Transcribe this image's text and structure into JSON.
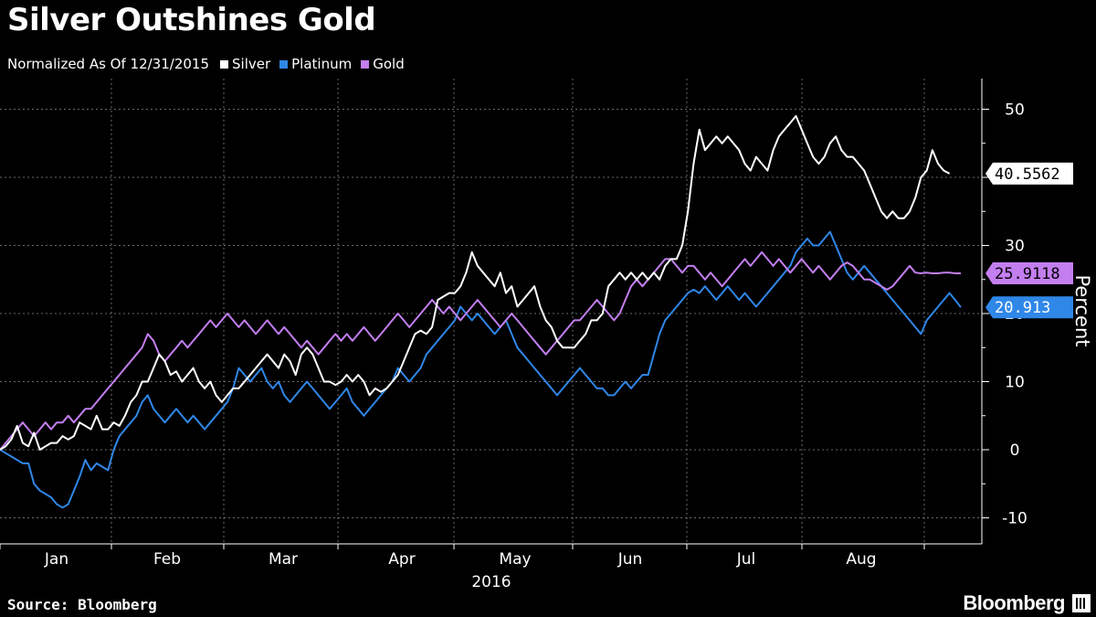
{
  "title": "Silver Outshines Gold",
  "subtitle": "Normalized As Of 12/31/2015",
  "source": "Source: Bloomberg",
  "brand": "Bloomberg",
  "chart_data": {
    "type": "line",
    "title": "Silver Outshines Gold",
    "subtitle": "Normalized As Of 12/31/2015",
    "ylabel": "Percent",
    "xlabel": "2016",
    "ylim": [
      -14,
      55
    ],
    "yticks": [
      -10,
      0,
      10,
      20,
      30,
      40,
      50
    ],
    "xticks": [
      "Jan",
      "Feb",
      "Mar",
      "Apr",
      "May",
      "Jun",
      "Jul",
      "Aug"
    ],
    "year_label": "2016",
    "grid": true,
    "legend_position": "top-left",
    "n_points": 170,
    "series": [
      {
        "name": "Silver",
        "color": "#ffffff",
        "last_label": "40.5562",
        "values": [
          0,
          0.5,
          1.5,
          3.5,
          1,
          0.5,
          2.5,
          0,
          0.5,
          1,
          1,
          2,
          1.5,
          2,
          4,
          3.5,
          3,
          5,
          3,
          3,
          4,
          3.5,
          5,
          7,
          8,
          10,
          10,
          12,
          14,
          13,
          11,
          11.5,
          10,
          11,
          12,
          10,
          9,
          10,
          8,
          7,
          8,
          9,
          9,
          10,
          11,
          12,
          13,
          14,
          13,
          12,
          14,
          13,
          11,
          14,
          15,
          14,
          12,
          10,
          10,
          9.5,
          10,
          11,
          10,
          11,
          10,
          8,
          9,
          8.5,
          9,
          10,
          11,
          13,
          15,
          17,
          17.5,
          17,
          18,
          22,
          22.5,
          23,
          23,
          24,
          26,
          29,
          27,
          26,
          25,
          24,
          26,
          23,
          24,
          21,
          22,
          23,
          24,
          21,
          19,
          18,
          16,
          15,
          15,
          15,
          16,
          17,
          19,
          19,
          20,
          24,
          25,
          26,
          25,
          26,
          25,
          26,
          25,
          26,
          25,
          27,
          28,
          28,
          30,
          35,
          42,
          47,
          44,
          45,
          46,
          45,
          46,
          45,
          44,
          42,
          41,
          43,
          42,
          41,
          44,
          46,
          47,
          48,
          49,
          47,
          45,
          43,
          42,
          43,
          45,
          46,
          44,
          43,
          43,
          42,
          41,
          39,
          37,
          35,
          34,
          35,
          34,
          34,
          35,
          37,
          40,
          41,
          44,
          42,
          41,
          40.5562
        ]
      },
      {
        "name": "Platinum",
        "color": "#2f87e8",
        "last_label": "20.913",
        "values": [
          0,
          -0.5,
          -1,
          -1.5,
          -2,
          -2,
          -5,
          -6,
          -6.5,
          -7,
          -8,
          -8.5,
          -8,
          -6,
          -4,
          -1.5,
          -3,
          -2,
          -2.5,
          -3,
          0,
          2,
          3,
          4,
          5,
          7,
          8,
          6,
          5,
          4,
          5,
          6,
          5,
          4,
          5,
          4,
          3,
          4,
          5,
          6,
          7,
          9,
          12,
          11,
          10,
          11,
          12,
          10,
          9,
          10,
          8,
          7,
          8,
          9,
          10,
          9,
          8,
          7,
          6,
          7,
          8,
          9,
          7,
          6,
          5,
          6,
          7,
          8,
          9,
          10,
          12,
          11,
          10,
          11,
          12,
          14,
          15,
          16,
          17,
          18,
          19,
          21,
          20,
          19,
          20,
          19,
          18,
          17,
          18,
          19,
          17,
          15,
          14,
          13,
          12,
          11,
          10,
          9,
          8,
          9,
          10,
          11,
          12,
          11,
          10,
          9,
          9,
          8,
          8,
          9,
          10,
          9,
          10,
          11,
          11,
          14,
          17,
          19,
          20,
          21,
          22,
          23,
          23.5,
          23,
          24,
          23,
          22,
          23,
          24,
          23,
          22,
          23,
          22,
          21,
          22,
          23,
          24,
          25,
          26,
          27,
          29,
          30,
          31,
          30,
          30,
          31,
          32,
          30,
          28,
          26,
          25,
          26,
          27,
          26,
          25,
          24,
          23,
          22,
          21,
          20,
          19,
          18,
          17,
          19,
          20,
          21,
          22,
          23,
          22,
          20.913
        ]
      },
      {
        "name": "Gold",
        "color": "#c37ef0",
        "last_label": "25.9118",
        "values": [
          0,
          1,
          2,
          3,
          4,
          3,
          2,
          3,
          4,
          3,
          4,
          4,
          5,
          4,
          5,
          6,
          6,
          7,
          8,
          9,
          10,
          11,
          12,
          13,
          14,
          15,
          17,
          16,
          14,
          13,
          14,
          15,
          16,
          15,
          16,
          17,
          18,
          19,
          18,
          19,
          20,
          19,
          18,
          19,
          18,
          17,
          18,
          19,
          18,
          17,
          18,
          17,
          16,
          15,
          16,
          15,
          14,
          15,
          16,
          17,
          16,
          17,
          16,
          17,
          18,
          17,
          16,
          17,
          18,
          19,
          20,
          19,
          18,
          19,
          20,
          21,
          22,
          21,
          20,
          21,
          20,
          19,
          20,
          21,
          22,
          21,
          20,
          19,
          18,
          19,
          20,
          19,
          18,
          17,
          16,
          15,
          14,
          15,
          16,
          17,
          18,
          19,
          19,
          20,
          21,
          22,
          21,
          20,
          19,
          20,
          22,
          24,
          25,
          24,
          25,
          26,
          27,
          28,
          28,
          27,
          26,
          27,
          27,
          26,
          25,
          26,
          25,
          24,
          25,
          26,
          27,
          28,
          27,
          28,
          29,
          28,
          27,
          28,
          27,
          26,
          27,
          28,
          27,
          26,
          27,
          26,
          25,
          26,
          27,
          27.5,
          27,
          26,
          25,
          25,
          24.5,
          24,
          23.5,
          24,
          25,
          26,
          27,
          26,
          25.9118,
          26,
          25.9,
          25.9118,
          26,
          26,
          25.9,
          25.9118
        ]
      }
    ]
  }
}
